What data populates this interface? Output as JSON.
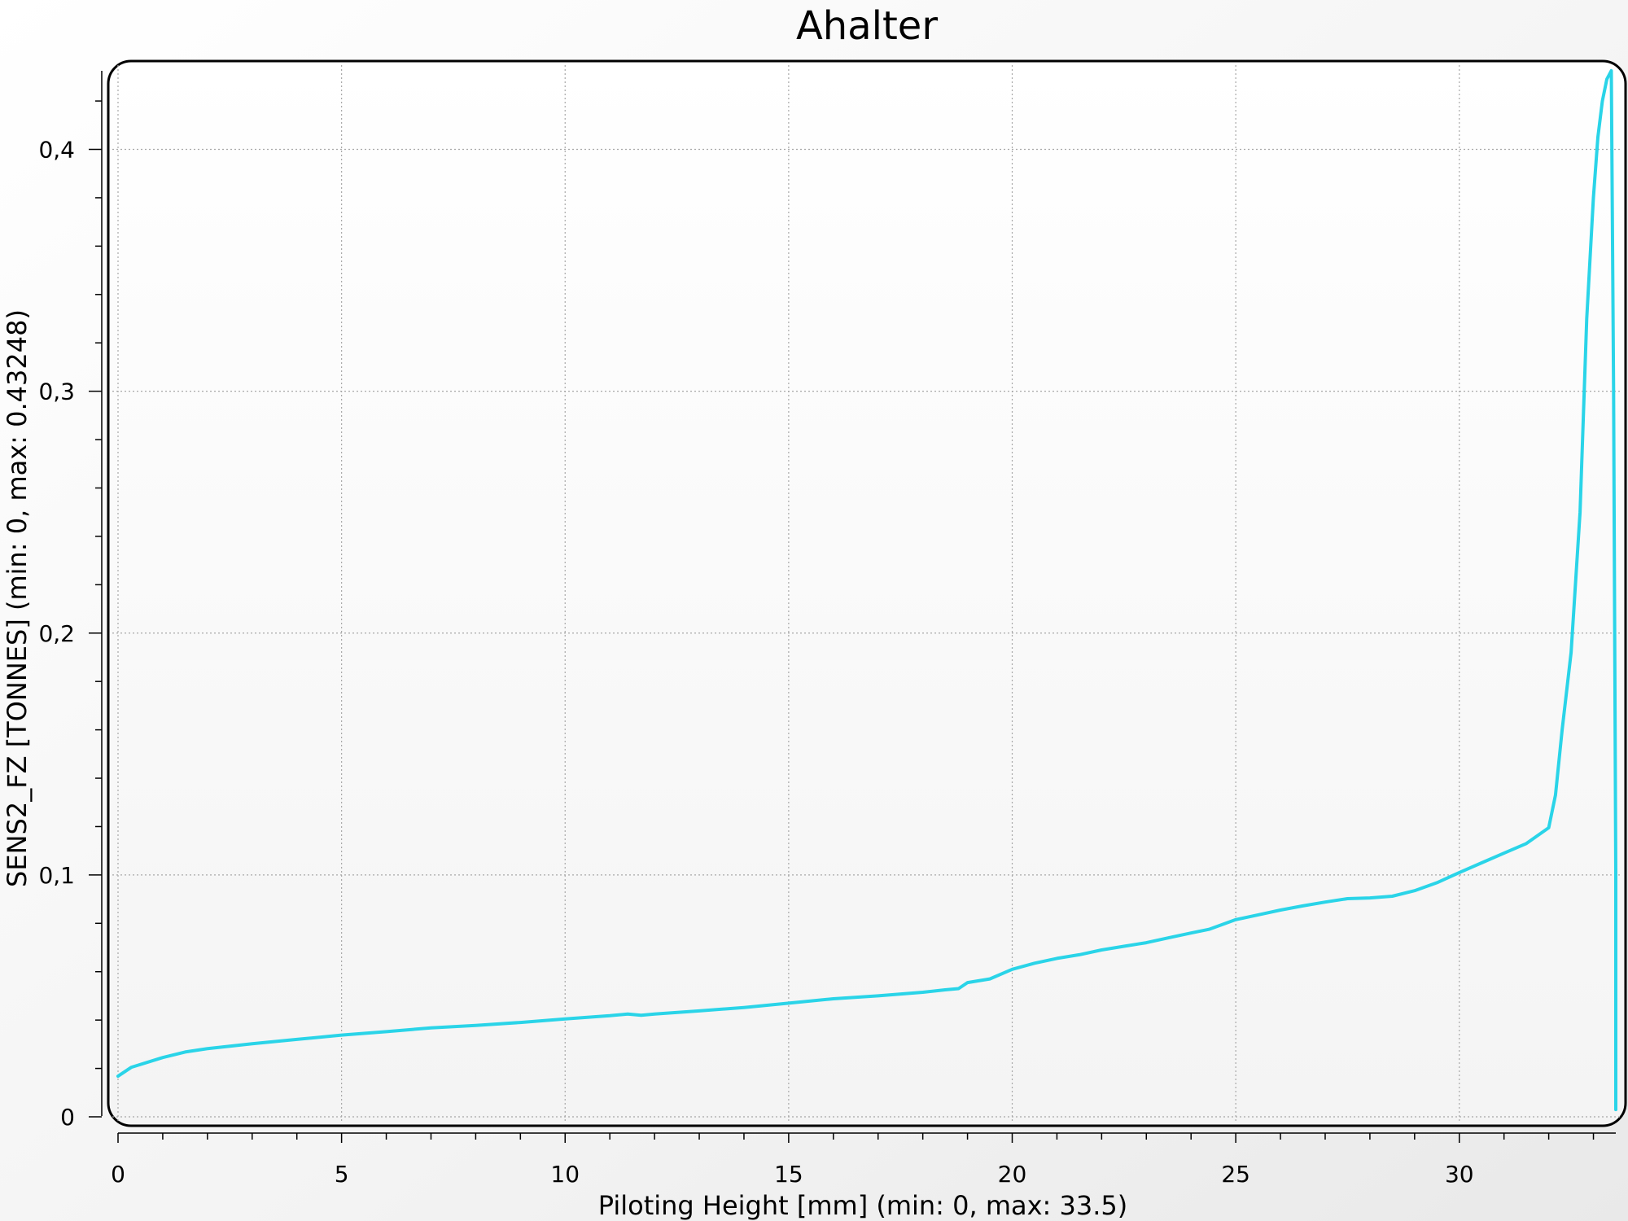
{
  "chart_data": {
    "type": "line",
    "title": "Ahalter",
    "xlabel": "Piloting Height [mm] (min: 0, max: 33.5)",
    "ylabel": "SENS2_FZ [TONNES] (min: 0, max: 0.43248)",
    "xlim": [
      0,
      33.5
    ],
    "ylim": [
      0,
      0.43248
    ],
    "x_ticks": [
      0,
      5,
      10,
      15,
      20,
      25,
      30
    ],
    "x_tick_labels": [
      "0",
      "5",
      "10",
      "15",
      "20",
      "25",
      "30"
    ],
    "y_ticks": [
      0,
      0.1,
      0.2,
      0.3,
      0.4
    ],
    "y_tick_labels": [
      "0",
      "0,1",
      "0,2",
      "0,3",
      "0,4"
    ],
    "grid": true,
    "legend": "none",
    "series": [
      {
        "color": "#2ad4e8",
        "x": [
          0,
          0.3,
          1,
          1.5,
          2,
          3,
          4,
          5,
          6,
          7,
          8,
          9,
          10,
          11,
          11.4,
          11.7,
          12,
          13,
          14,
          15,
          16,
          17,
          18,
          18.5,
          18.8,
          19,
          19.5,
          20,
          20.5,
          21,
          21.5,
          22,
          22.5,
          23,
          23.5,
          24,
          24.4,
          25,
          25.5,
          26,
          26.5,
          27,
          27.5,
          28,
          28.5,
          29,
          29.5,
          30,
          30.5,
          31,
          31.5,
          32,
          32.15,
          32.3,
          32.5,
          32.7,
          32.85,
          33,
          33.1,
          33.2,
          33.3,
          33.4,
          33.45,
          33.5,
          33.5
        ],
        "y": [
          0.0168,
          0.0205,
          0.0245,
          0.0268,
          0.0282,
          0.0302,
          0.032,
          0.0338,
          0.0352,
          0.0368,
          0.0378,
          0.039,
          0.0405,
          0.0418,
          0.0425,
          0.042,
          0.0425,
          0.0438,
          0.0452,
          0.047,
          0.0488,
          0.05,
          0.0515,
          0.0525,
          0.053,
          0.0555,
          0.057,
          0.061,
          0.0635,
          0.0655,
          0.067,
          0.069,
          0.0705,
          0.072,
          0.074,
          0.076,
          0.0775,
          0.0815,
          0.0835,
          0.0855,
          0.0872,
          0.0888,
          0.0902,
          0.0905,
          0.0912,
          0.0935,
          0.0968,
          0.101,
          0.105,
          0.109,
          0.113,
          0.1195,
          0.133,
          0.16,
          0.192,
          0.25,
          0.33,
          0.38,
          0.405,
          0.42,
          0.429,
          0.4325,
          0.3,
          0.1,
          0.003
        ]
      }
    ]
  }
}
